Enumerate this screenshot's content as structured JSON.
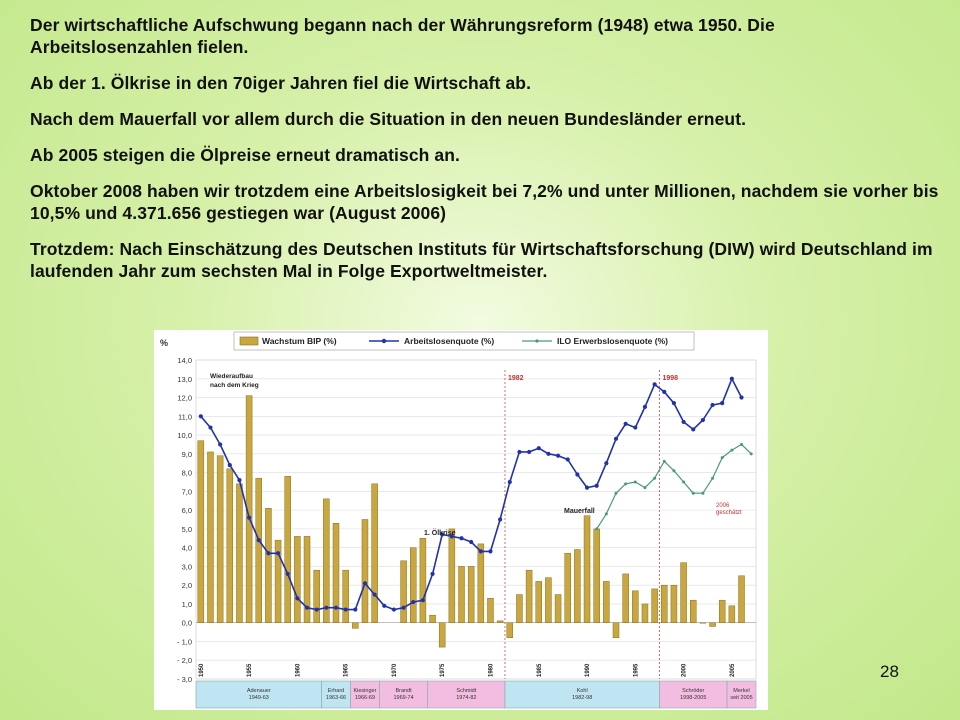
{
  "slide": {
    "paragraphs": [
      "Der wirtschaftliche Aufschwung begann nach der Währungsreform (1948) etwa 1950. Die Arbeitslosenzahlen fielen.",
      "Ab der 1. Ölkrise in den 70iger Jahren fiel die Wirtschaft ab.",
      "Nach dem Mauerfall vor allem durch die Situation in den neuen Bundesländer erneut.",
      "Ab 2005 steigen die Ölpreise erneut dramatisch an.",
      "Oktober 2008 haben wir trotzdem eine Arbeitslosigkeit bei 7,2% und unter Millionen, nachdem sie vorher bis 10,5% und 4.371.656 gestiegen war (August 2006)",
      "Trotzdem: Nach Einschätzung des Deutschen Instituts für Wirtschaftsforschung (DIW) wird Deutschland im laufenden Jahr zum sechsten Mal in Folge Exportweltmeister."
    ],
    "page_number": "28"
  },
  "colors": {
    "bar": "#c8a640",
    "bar_stroke": "#8a6f1c",
    "line1": "#2233aa",
    "line2": "#4a9a7a",
    "marker": "#c83030",
    "era_blue": "#bfe4f2",
    "era_pink": "#f2bde0"
  },
  "chart_data": {
    "type": "bar",
    "ylabel": "%",
    "ylim": [
      -3,
      14
    ],
    "yticks": [
      "14,0",
      "13,0",
      "12,0",
      "11,0",
      "10,0",
      "9,0",
      "8,0",
      "7,0",
      "6,0",
      "5,0",
      "4,0",
      "3,0",
      "2,0",
      "1,0",
      "0,0",
      "- 1,0",
      "- 2,0",
      "- 3,0"
    ],
    "years": [
      1950,
      1951,
      1952,
      1953,
      1954,
      1955,
      1956,
      1957,
      1958,
      1959,
      1960,
      1961,
      1962,
      1963,
      1964,
      1965,
      1966,
      1967,
      1968,
      1969,
      1970,
      1971,
      1972,
      1973,
      1974,
      1975,
      1976,
      1977,
      1978,
      1979,
      1980,
      1981,
      1982,
      1983,
      1984,
      1985,
      1986,
      1987,
      1988,
      1989,
      1990,
      1991,
      1992,
      1993,
      1994,
      1995,
      1996,
      1997,
      1998,
      1999,
      2000,
      2001,
      2002,
      2003,
      2004,
      2005,
      2006,
      2007
    ],
    "xtick_labels": [
      {
        "year": 1950,
        "label": "1950"
      },
      {
        "year": 1955,
        "label": "1955"
      },
      {
        "year": 1960,
        "label": "1960"
      },
      {
        "year": 1965,
        "label": "1965"
      },
      {
        "year": 1970,
        "label": "1970"
      },
      {
        "year": 1975,
        "label": "1975"
      },
      {
        "year": 1980,
        "label": "1980"
      },
      {
        "year": 1985,
        "label": "1985"
      },
      {
        "year": 1990,
        "label": "1990"
      },
      {
        "year": 1995,
        "label": "1995"
      },
      {
        "year": 2000,
        "label": "2000"
      },
      {
        "year": 2005,
        "label": "2005"
      }
    ],
    "series": [
      {
        "name": "Wachstum BIP (%)",
        "kind": "bar",
        "values": [
          9.7,
          9.1,
          8.9,
          8.2,
          7.4,
          12.1,
          7.7,
          6.1,
          4.4,
          7.8,
          4.6,
          4.6,
          2.8,
          6.6,
          5.3,
          2.8,
          -0.3,
          5.5,
          7.4,
          null,
          null,
          3.3,
          4.0,
          4.5,
          0.4,
          -1.3,
          5.0,
          3.0,
          3.0,
          4.2,
          1.3,
          0.1,
          -0.8,
          1.5,
          2.8,
          2.2,
          2.4,
          1.5,
          3.7,
          3.9,
          5.7,
          5.0,
          2.2,
          -0.8,
          2.6,
          1.7,
          1.0,
          1.8,
          2.0,
          2.0,
          3.2,
          1.2,
          0.0,
          -0.2,
          1.2,
          0.9,
          2.5,
          null
        ]
      },
      {
        "name": "Arbeitslosenquote (%)",
        "kind": "line",
        "values": [
          11.0,
          10.4,
          9.5,
          8.4,
          7.6,
          5.6,
          4.4,
          3.7,
          3.7,
          2.6,
          1.3,
          0.8,
          0.7,
          0.8,
          0.8,
          0.7,
          0.7,
          2.1,
          1.5,
          0.9,
          0.7,
          0.8,
          1.1,
          1.2,
          2.6,
          4.7,
          4.6,
          4.5,
          4.3,
          3.8,
          3.8,
          5.5,
          7.5,
          9.1,
          9.1,
          9.3,
          9.0,
          8.9,
          8.7,
          7.9,
          7.2,
          7.3,
          8.5,
          9.8,
          10.6,
          10.4,
          11.5,
          12.7,
          12.3,
          11.7,
          10.7,
          10.3,
          10.8,
          11.6,
          11.7,
          13.0,
          12.0,
          null
        ]
      },
      {
        "name": "ILO Erwerbslosenquote (%)",
        "kind": "line",
        "start_year": 1991,
        "values": [
          5.0,
          5.8,
          6.9,
          7.4,
          7.5,
          7.2,
          7.7,
          8.6,
          8.1,
          7.5,
          6.9,
          6.9,
          7.7,
          8.8,
          9.2,
          9.5,
          9.0
        ]
      }
    ],
    "annotations": {
      "wiederaufbau": "Wiederaufbau nach dem Krieg",
      "oelkrise": "1. Ölkrise",
      "mauerfall": "Mauerfall",
      "marker1": "1982",
      "marker2": "1998",
      "note2006": "2006 geschätzt"
    },
    "eras": [
      {
        "label": "Adenauer 1949-63",
        "start": 1950,
        "end": 1963,
        "color": "blue"
      },
      {
        "label": "Erhard 1963-66",
        "start": 1963,
        "end": 1966,
        "color": "blue"
      },
      {
        "label": "Kiesinger 1966-69",
        "start": 1966,
        "end": 1969,
        "color": "pink"
      },
      {
        "label": "Brandt 1969-74",
        "start": 1969,
        "end": 1974,
        "color": "pink"
      },
      {
        "label": "Schmidt 1974-82",
        "start": 1974,
        "end": 1982,
        "color": "pink"
      },
      {
        "label": "Kohl 1982-98",
        "start": 1982,
        "end": 1998,
        "color": "blue"
      },
      {
        "label": "Schröder 1998-2005",
        "start": 1998,
        "end": 2005,
        "color": "pink"
      },
      {
        "label": "Merkel seit 2005",
        "start": 2005,
        "end": 2008,
        "color": "pink"
      }
    ]
  }
}
